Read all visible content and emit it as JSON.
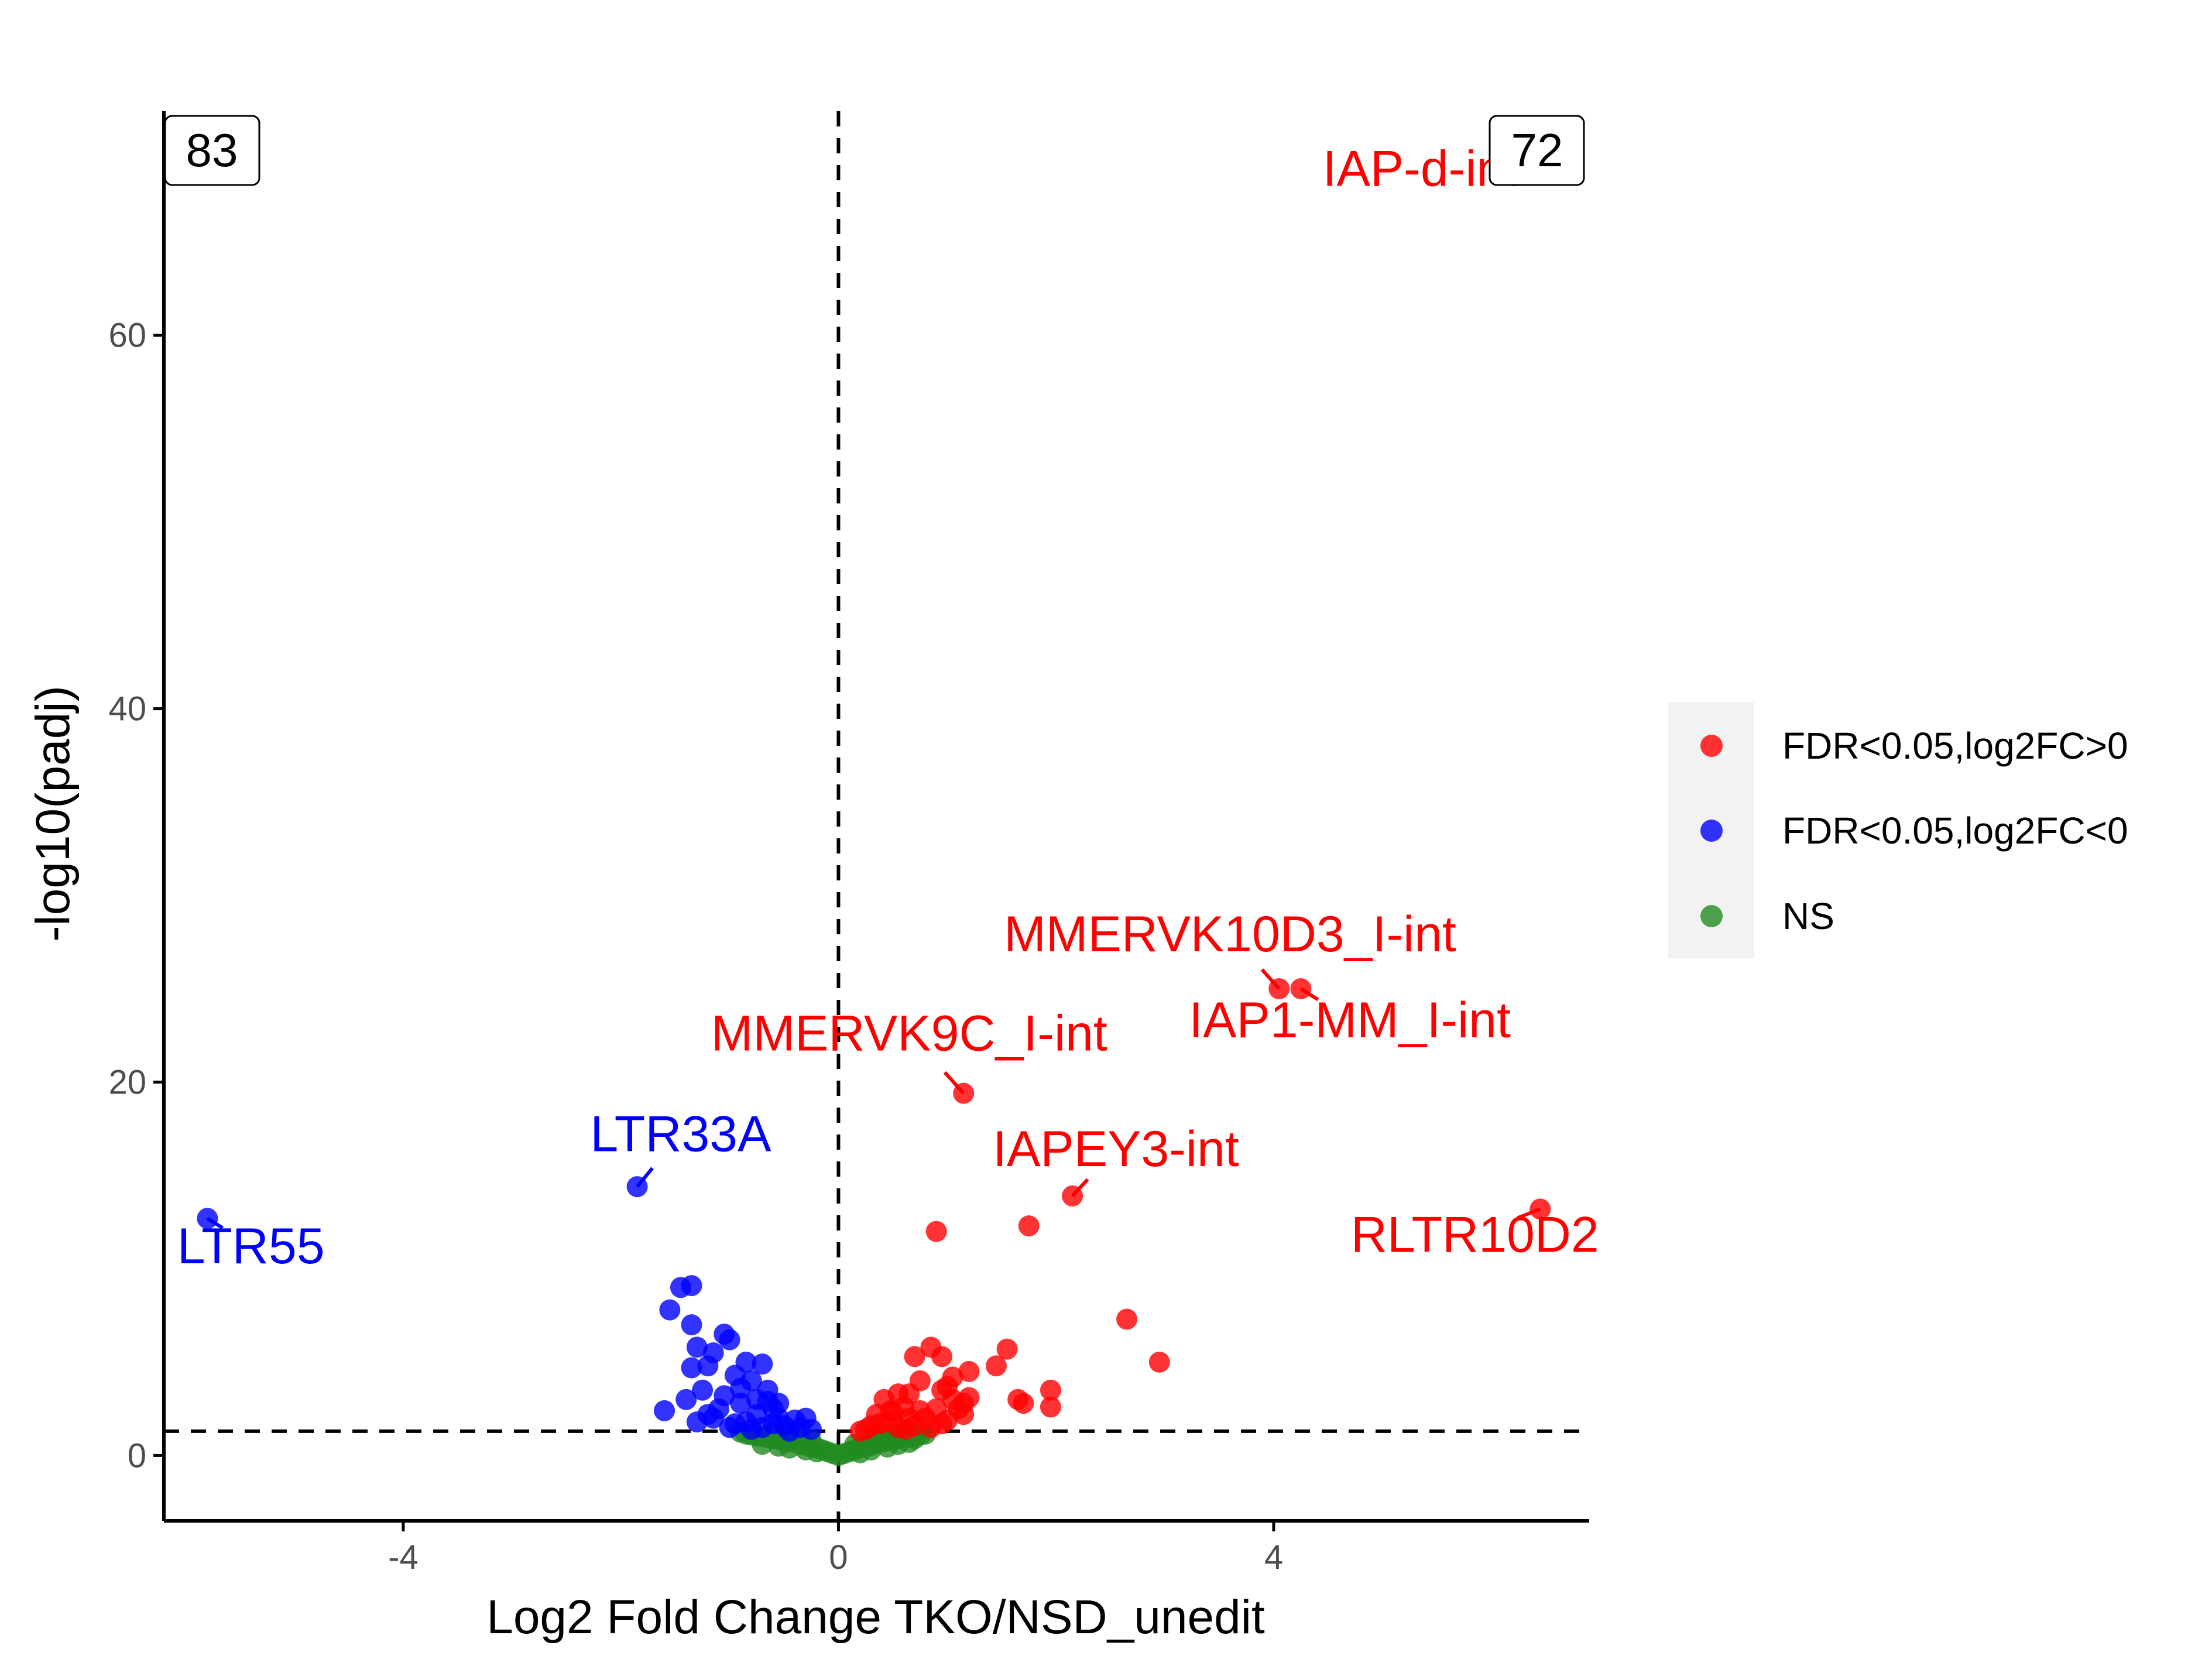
{
  "colors": {
    "up": "#FF0000",
    "down": "#0000FF",
    "ns": "#228B22",
    "axis": "#000000",
    "legend_bg": "#F2F2F2"
  },
  "chart_data": {
    "type": "scatter",
    "title": "",
    "xlabel": "Log2 Fold Change TKO/NSD_unedit",
    "ylabel": "-log10(padj)",
    "xlim": [
      -6.2,
      6.9
    ],
    "ylim": [
      -3.5,
      72
    ],
    "x_ticks": [
      -4,
      0,
      4
    ],
    "x_tick_labels": [
      "-4",
      "0",
      "4"
    ],
    "y_ticks": [
      0,
      20,
      40,
      60
    ],
    "y_tick_labels": [
      "0",
      "20",
      "40",
      "60"
    ],
    "grid": false,
    "legend_position": "right",
    "threshold_lines": {
      "x": 0,
      "y": 1.3,
      "style": "dashed"
    },
    "counts": {
      "down": "83",
      "up": "72"
    },
    "series": [
      {
        "name": "FDR<0.05,log2FC>0",
        "color": "#FF0000",
        "points": [
          [
            6.45,
            13.2
          ],
          [
            1.15,
            19.4
          ],
          [
            4.05,
            25.0
          ],
          [
            4.25,
            25.0
          ],
          [
            2.15,
            13.9
          ],
          [
            1.75,
            12.3
          ],
          [
            0.9,
            12.0
          ],
          [
            2.65,
            7.3
          ],
          [
            2.95,
            5.0
          ],
          [
            1.55,
            5.7
          ],
          [
            1.45,
            4.8
          ],
          [
            0.85,
            5.8
          ],
          [
            0.95,
            5.3
          ],
          [
            0.7,
            5.3
          ],
          [
            1.2,
            4.5
          ],
          [
            1.05,
            4.2
          ],
          [
            0.75,
            4.0
          ],
          [
            0.95,
            3.5
          ],
          [
            1.0,
            3.7
          ],
          [
            0.55,
            3.3
          ],
          [
            0.65,
            3.3
          ],
          [
            0.42,
            3.0
          ],
          [
            1.05,
            3.0
          ],
          [
            1.15,
            2.8
          ],
          [
            1.65,
            3.0
          ],
          [
            1.7,
            2.8
          ],
          [
            1.95,
            3.5
          ],
          [
            1.95,
            2.6
          ],
          [
            0.9,
            2.5
          ],
          [
            1.15,
            2.2
          ],
          [
            0.6,
            2.6
          ],
          [
            0.35,
            2.2
          ],
          [
            0.5,
            2.3
          ],
          [
            0.75,
            2.4
          ],
          [
            1.0,
            1.9
          ],
          [
            0.95,
            1.7
          ],
          [
            0.65,
            2.0
          ],
          [
            0.45,
            1.8
          ],
          [
            0.3,
            1.6
          ],
          [
            0.85,
            1.5
          ],
          [
            0.25,
            1.4
          ],
          [
            1.1,
            2.5
          ],
          [
            0.55,
            1.5
          ],
          [
            0.38,
            1.7
          ],
          [
            0.7,
            1.6
          ],
          [
            0.2,
            1.3
          ],
          [
            0.8,
            2.0
          ],
          [
            0.48,
            2.4
          ],
          [
            1.2,
            3.1
          ],
          [
            0.62,
            1.4
          ]
        ]
      },
      {
        "name": "FDR<0.05,log2FC<0",
        "color": "#0000FF",
        "points": [
          [
            -5.8,
            12.7
          ],
          [
            -1.85,
            14.4
          ],
          [
            -1.45,
            9.0
          ],
          [
            -1.35,
            9.1
          ],
          [
            -1.55,
            7.8
          ],
          [
            -1.35,
            7.0
          ],
          [
            -1.05,
            6.5
          ],
          [
            -1.0,
            6.2
          ],
          [
            -1.3,
            5.8
          ],
          [
            -0.85,
            5.0
          ],
          [
            -0.7,
            4.9
          ],
          [
            -1.15,
            5.5
          ],
          [
            -1.2,
            4.8
          ],
          [
            -1.35,
            4.7
          ],
          [
            -0.95,
            4.3
          ],
          [
            -0.8,
            4.0
          ],
          [
            -0.65,
            3.5
          ],
          [
            -1.25,
            3.5
          ],
          [
            -1.05,
            3.2
          ],
          [
            -1.4,
            3.0
          ],
          [
            -0.9,
            2.8
          ],
          [
            -0.6,
            2.5
          ],
          [
            -1.6,
            2.4
          ],
          [
            -1.2,
            2.2
          ],
          [
            -0.75,
            2.2
          ],
          [
            -0.55,
            2.0
          ],
          [
            -1.3,
            1.8
          ],
          [
            -0.4,
            1.9
          ],
          [
            -0.3,
            2.0
          ],
          [
            -0.95,
            1.7
          ],
          [
            -1.1,
            2.5
          ],
          [
            -0.5,
            1.6
          ],
          [
            -0.7,
            1.5
          ],
          [
            -0.85,
            1.8
          ],
          [
            -0.35,
            1.5
          ],
          [
            -1.0,
            1.5
          ],
          [
            -0.6,
            1.7
          ],
          [
            -0.25,
            1.4
          ],
          [
            -0.45,
            1.3
          ],
          [
            -0.8,
            1.4
          ],
          [
            -0.65,
            2.9
          ],
          [
            -1.15,
            2.0
          ],
          [
            -0.9,
            3.6
          ],
          [
            -0.75,
            3.0
          ],
          [
            -0.55,
            2.8
          ]
        ]
      },
      {
        "name": "NS",
        "color": "#228B22",
        "points": [
          [
            -0.9,
            1.25
          ],
          [
            -0.85,
            1.15
          ],
          [
            -0.8,
            1.1
          ],
          [
            -0.75,
            1.05
          ],
          [
            -0.7,
            1.0
          ],
          [
            -0.65,
            0.95
          ],
          [
            -0.6,
            0.9
          ],
          [
            -0.55,
            0.85
          ],
          [
            -0.5,
            0.8
          ],
          [
            -0.45,
            0.75
          ],
          [
            -0.4,
            0.7
          ],
          [
            -0.35,
            0.6
          ],
          [
            -0.3,
            0.55
          ],
          [
            -0.25,
            0.45
          ],
          [
            -0.2,
            0.4
          ],
          [
            -0.15,
            0.3
          ],
          [
            -0.1,
            0.2
          ],
          [
            -0.05,
            0.1
          ],
          [
            0.0,
            0.0
          ],
          [
            0.05,
            0.1
          ],
          [
            0.1,
            0.2
          ],
          [
            0.15,
            0.3
          ],
          [
            0.2,
            0.4
          ],
          [
            0.25,
            0.5
          ],
          [
            0.3,
            0.55
          ],
          [
            0.35,
            0.65
          ],
          [
            0.4,
            0.7
          ],
          [
            0.45,
            0.8
          ],
          [
            0.5,
            0.85
          ],
          [
            0.55,
            0.9
          ],
          [
            0.6,
            0.95
          ],
          [
            0.65,
            1.0
          ],
          [
            0.7,
            1.05
          ],
          [
            0.75,
            1.1
          ],
          [
            0.8,
            1.15
          ],
          [
            -0.7,
            0.6
          ],
          [
            -0.55,
            0.5
          ],
          [
            -0.45,
            0.4
          ],
          [
            -0.3,
            0.3
          ],
          [
            -0.2,
            0.2
          ],
          [
            0.2,
            0.15
          ],
          [
            0.3,
            0.3
          ],
          [
            0.45,
            0.45
          ],
          [
            0.55,
            0.6
          ],
          [
            0.65,
            0.7
          ],
          [
            -0.6,
            1.2
          ],
          [
            -0.5,
            1.1
          ],
          [
            0.5,
            1.1
          ],
          [
            0.6,
            1.2
          ],
          [
            0.7,
            0.9
          ],
          [
            -0.35,
            0.9
          ],
          [
            -0.25,
            0.8
          ],
          [
            0.15,
            0.6
          ],
          [
            0.35,
            1.0
          ],
          [
            0.42,
            1.2
          ]
        ]
      }
    ],
    "annotations": [
      {
        "label": "IAP-d-int",
        "color": "#FF0000",
        "point": [
          6.45,
          69.5
        ],
        "text_at": [
          5.35,
          68.0
        ]
      },
      {
        "label": "MMERVK10D3_I-int",
        "color": "#FF0000",
        "point": [
          4.05,
          25.0
        ],
        "text_at": [
          3.6,
          27.0
        ]
      },
      {
        "label": "IAP1-MM_I-int",
        "color": "#FF0000",
        "point": [
          4.25,
          25.0
        ],
        "text_at": [
          4.7,
          22.4
        ]
      },
      {
        "label": "MMERVK9C_I-int",
        "color": "#FF0000",
        "point": [
          1.15,
          19.4
        ],
        "text_at": [
          0.65,
          21.7
        ]
      },
      {
        "label": "IAPEY3-int",
        "color": "#FF0000",
        "point": [
          2.15,
          13.9
        ],
        "text_at": [
          2.55,
          15.5
        ]
      },
      {
        "label": "RLTR10D2",
        "color": "#FF0000",
        "point": [
          6.45,
          13.2
        ],
        "text_at": [
          5.85,
          10.9
        ]
      },
      {
        "label": "LTR33A",
        "color": "#0000FF",
        "point": [
          -1.85,
          14.4
        ],
        "text_at": [
          -1.45,
          16.3
        ]
      },
      {
        "label": "LTR55",
        "color": "#0000FF",
        "point": [
          -5.8,
          12.7
        ],
        "text_at": [
          -5.4,
          10.3
        ]
      }
    ]
  }
}
